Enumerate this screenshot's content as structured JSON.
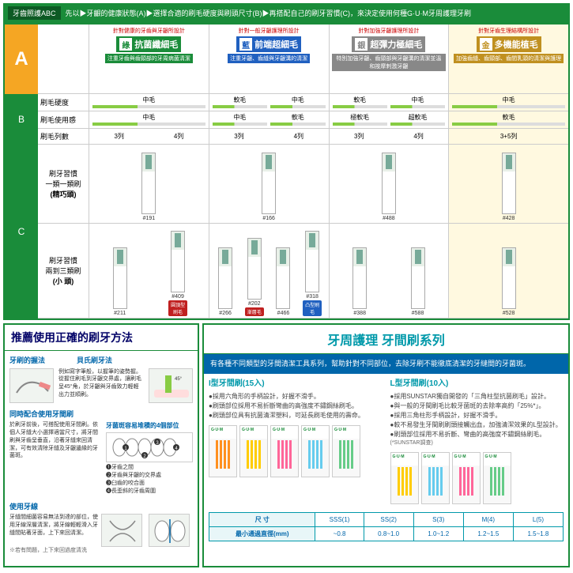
{
  "topbar": {
    "label": "牙齒照護ABC",
    "text": "先以▶牙齦的健康狀態(A)▶選擇合適的刷毛硬度與刷頭尺寸(B)▶再搭配自己的刷牙習慣(C)，來決定使用何種G·U·M牙周護理牙刷"
  },
  "section_labels": {
    "A": "A",
    "B": "B",
    "C": "C"
  },
  "row_labels": {
    "hardness": "刷毛硬度",
    "feel": "刷毛使用感",
    "cols": "刷毛列數",
    "habit1a": "刷牙習慣",
    "habit1b": "一類一類刷",
    "habit1c": "(精巧頭)",
    "habit2a": "刷牙習慣",
    "habit2b": "兩到三類刷",
    "habit2c": "(小 頭)"
  },
  "brands": [
    {
      "key": "green",
      "tag": "針對健康的牙齒與牙齦所設計",
      "sq": "綠",
      "name": "抗菌纖細毛",
      "sub": "注重牙齒與齒頸部的牙周病菌清潔",
      "bg": "#1a8c3a",
      "hardness": [
        "中毛"
      ],
      "feel": [
        "中毛"
      ],
      "cols": [
        "3列",
        "4列"
      ],
      "row1": [
        {
          "code": "#191"
        }
      ],
      "row2": [
        {
          "code": "#211"
        },
        {
          "code": "#409",
          "badge": "圓頂型刷毛",
          "bcolor": "#c02020"
        }
      ]
    },
    {
      "key": "blue",
      "tag": "針對一般牙齦護理所設計",
      "sq": "藍",
      "name": "前端超細毛",
      "sub": "注重牙齦、齒縫與牙齦溝的清潔",
      "bg": "#2060c0",
      "hardness": [
        "軟毛",
        "中毛"
      ],
      "feel": [
        "中毛",
        "軟毛"
      ],
      "cols": [
        "3列",
        "4列"
      ],
      "row1": [
        {
          "code": "#166"
        }
      ],
      "row2": [
        {
          "code": "#266"
        },
        {
          "code": "#202",
          "badge": "漸層毛",
          "bcolor": "#c02020"
        },
        {
          "code": "#466"
        },
        {
          "code": "#318",
          "badge": "凸型刷毛",
          "bcolor": "#2060c0"
        }
      ]
    },
    {
      "key": "silver",
      "tag": "針對加強牙齦護理所設計",
      "sq": "銀",
      "name": "超彈力極細毛",
      "sub": "特別加強牙齦、齒頸部與牙齦溝的清潔並溫和按摩刺激牙齦",
      "bg": "#888888",
      "hardness": [
        "軟毛",
        "中毛"
      ],
      "feel": [
        "極軟毛",
        "超軟毛"
      ],
      "cols": [
        "3列",
        "4列"
      ],
      "row1": [
        {
          "code": "#488"
        }
      ],
      "row2": [
        {
          "code": "#388"
        },
        {
          "code": "#588"
        }
      ]
    },
    {
      "key": "gold",
      "tag": "針對牙齒生理結構所設計",
      "sq": "金",
      "name": "多機能植毛",
      "sub": "加強齒縫、齒頸部、齒間乳頭的清潔與護理",
      "bg": "#c09020",
      "hardness": [
        "中毛"
      ],
      "feel": [
        "軟毛"
      ],
      "cols": [
        "3+5列"
      ],
      "row1": [
        {
          "code": "#428"
        }
      ],
      "row2": [
        {
          "code": "#528"
        }
      ]
    }
  ],
  "left_panel": {
    "title": "推薦使用正確的刷牙方法",
    "m1": {
      "title": "牙刷的握法",
      "text": "例如寫字筆般，以握筆的姿勢握。從握住刷毛到牙齦交界處，讓刷毛呈45°角，於牙齦與牙齒致力輕輕出力並順刷。"
    },
    "bass": {
      "title": "貝氏刷牙法"
    },
    "combo": {
      "title": "同時配合使用牙間刷",
      "text": "於刷牙前後，可搭配使用牙間刷。依個人牙縫大小選擇適當尺寸，將牙間刷與牙齒呈垂直，沿著牙縫來回清潔，可有效清除牙縫及牙齦邊緣的牙菌斑。"
    },
    "parts": {
      "title": "牙菌斑容易堆積的4個部位",
      "i1": "❶牙齒之間",
      "i2": "❷牙齒與牙齦的交界處",
      "i3": "❸臼齒的咬合面",
      "i4": "❹長歪斜的牙齒周圍"
    },
    "floss": {
      "title": "使用牙線",
      "text": "牙縫間細菌容易無法到達的部位，使用牙線深層清潔，將牙線輕輕滑入牙縫間貼著牙面，上下來回清潔。"
    },
    "note": "※若有問題，上下來回過度清洗"
  },
  "right_panel": {
    "title": "牙周護理 牙間刷系列",
    "intro": "有各種不同類型的牙間清潔工具系列，幫助針對不同部位，去除牙刷不能徹底清潔的牙縫間的牙菌斑。",
    "itype": {
      "title": "I型牙間刷(15入)",
      "b1": "●採用六角形的手柄設計，好握不滑手。",
      "b2": "●刷頭部位採用不易折斷彎曲的高強度不鏽鋼絲刷毛。",
      "b3": "●刷頭部位具有抗菌清潔塑料，可延長刷毛使用的壽命。"
    },
    "ltype": {
      "title": "L型牙間刷(10入)",
      "b1": "●採用SUNSTAR獨自開發的「三角柱型抗菌刷毛」設計。",
      "b2": "●與一般的牙間刷毛比較牙菌斑的去除率高約「25%*」。",
      "b3": "●採用三角柱形手柄設計，好握不滑手。",
      "b4": "●較不易發生牙間刷刷頭接觸出血，加強清潔效果的L型設計。",
      "b5": "●刷頭部位採用不易折斷、彎曲的高強度不鏽鋼絲刷毛。",
      "note": "(*SUNSTAR調查)"
    },
    "i_colors": [
      "#ff9020",
      "#ffcc00",
      "#ff6699",
      "#66ccee",
      "#66cc88"
    ],
    "l_colors": [
      "#ffcc00",
      "#66ccee",
      "#ff6699",
      "#66cc88"
    ],
    "size_table": {
      "h1": "尺 寸",
      "h2": "最小通過直徑(mm)",
      "cols": [
        "SSS(1)",
        "SS(2)",
        "S(3)",
        "M(4)",
        "L(5)"
      ],
      "vals": [
        "~0.8",
        "0.8~1.0",
        "1.0~1.2",
        "1.2~1.5",
        "1.5~1.8"
      ]
    }
  }
}
